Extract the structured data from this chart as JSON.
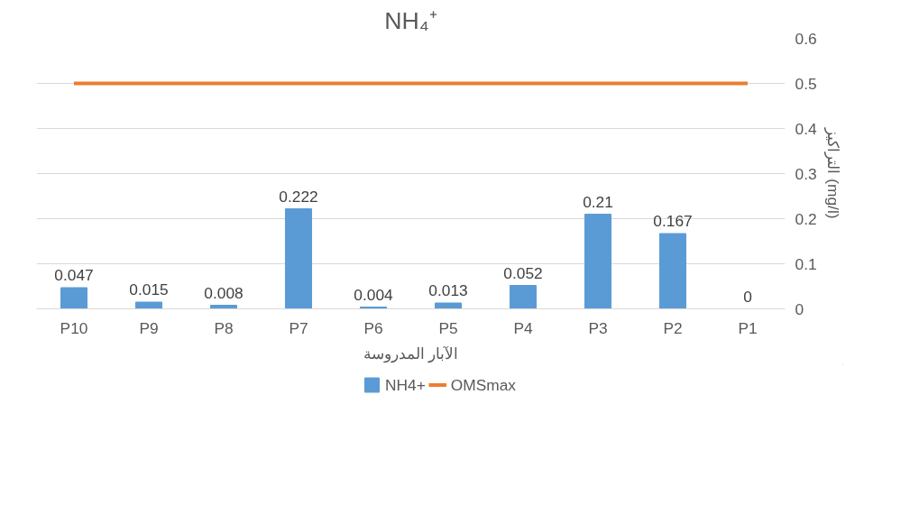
{
  "chart_data": {
    "type": "bar",
    "title": "NH₄⁺",
    "xlabel": "الآبار المدروسة",
    "ylabel": "التراكيز (mg/l)",
    "categories": [
      "P10",
      "P9",
      "P8",
      "P7",
      "P6",
      "P5",
      "P4",
      "P3",
      "P2",
      "P1"
    ],
    "series": [
      {
        "name": "NH4+",
        "color": "#5b9bd5",
        "values": [
          0.047,
          0.015,
          0.008,
          0.222,
          0.004,
          0.013,
          0.052,
          0.21,
          0.167,
          0
        ],
        "value_labels": [
          "0.047",
          "0.015",
          "0.008",
          "0.222",
          "0.004",
          "0.013",
          "0.052",
          "0.21",
          "0.167",
          "0"
        ]
      },
      {
        "name": "OMSmax",
        "type": "line",
        "color": "#ed7d31",
        "values": [
          0.5,
          0.5,
          0.5,
          0.5,
          0.5,
          0.5,
          0.5,
          0.5,
          0.5,
          0.5
        ]
      }
    ],
    "ylim": [
      0,
      0.6
    ],
    "yticks": [
      0,
      0.1,
      0.2,
      0.3,
      0.4,
      0.5,
      0.6
    ],
    "grid": "y",
    "legend": "bottom"
  }
}
